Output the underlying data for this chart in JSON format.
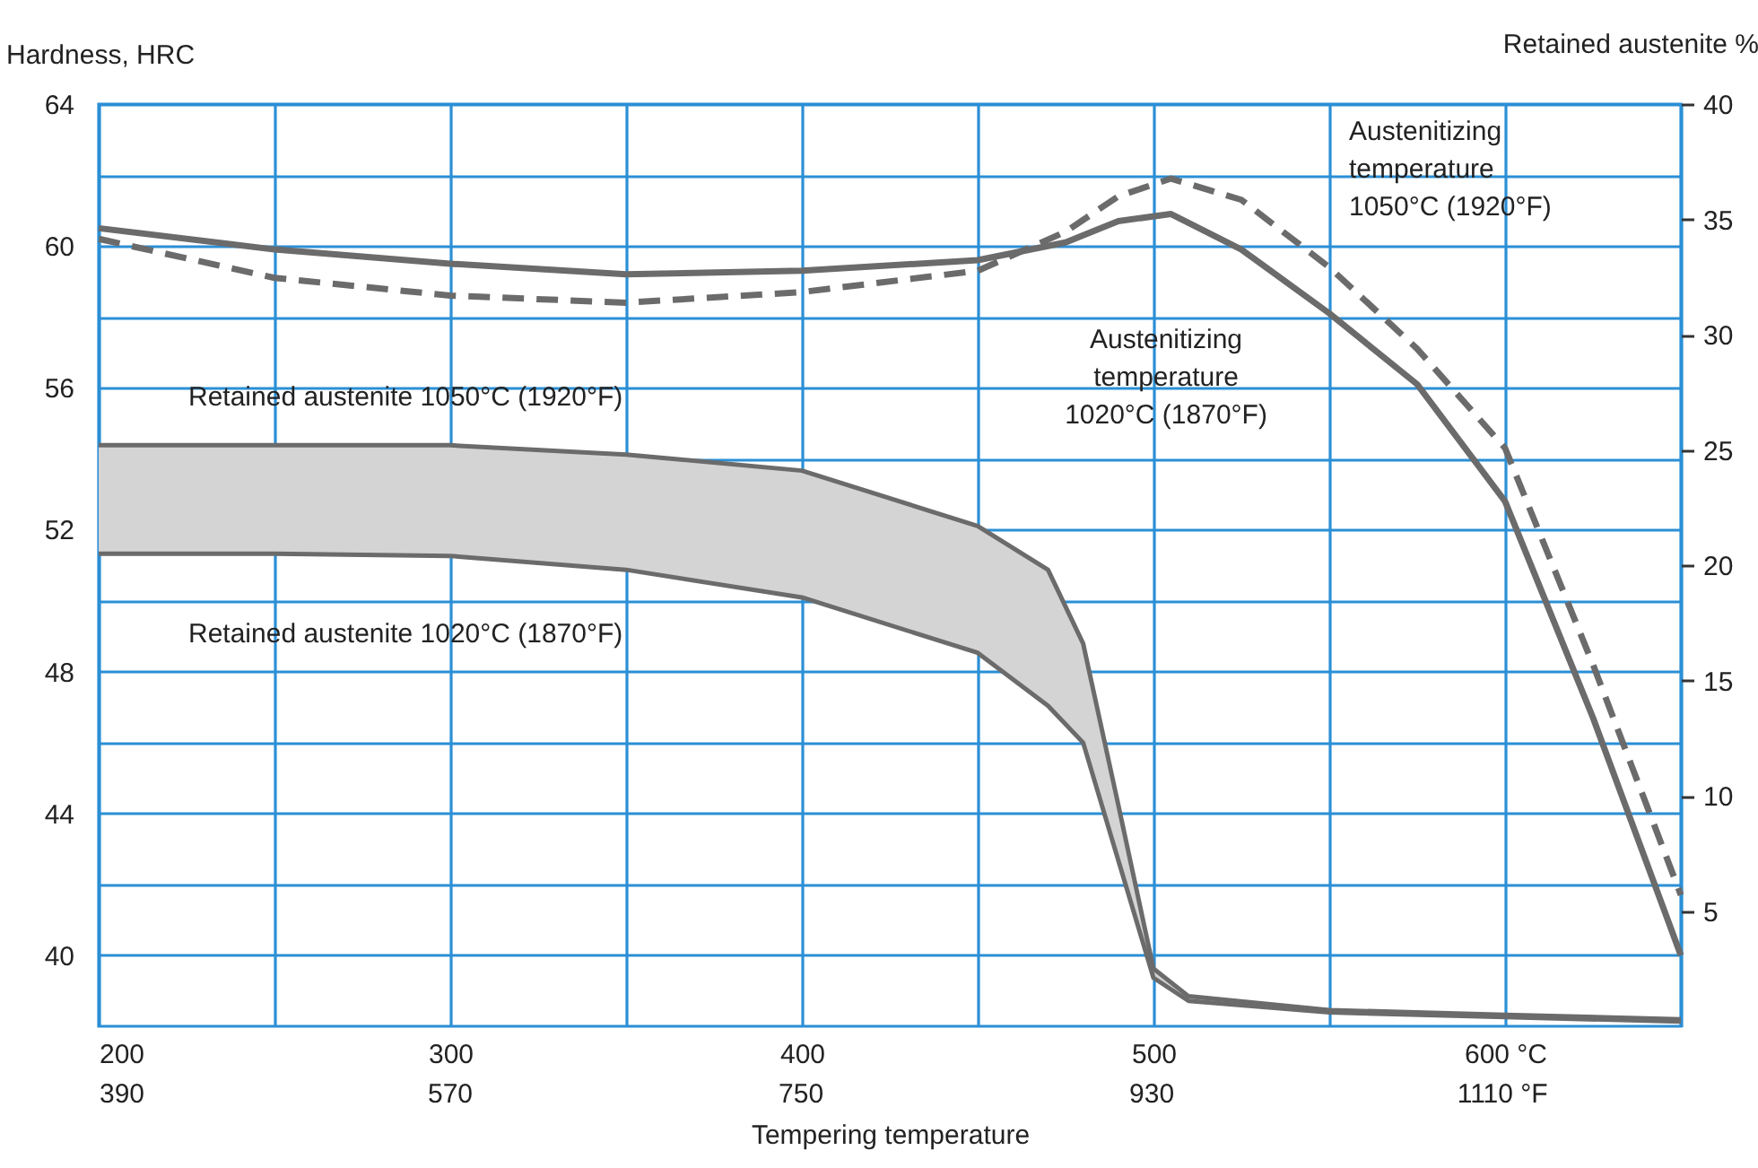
{
  "chart_data": {
    "type": "line",
    "xlabel": "Tempering temperature",
    "ylabel": "Hardness, HRC",
    "y2label": "Retained austenite %",
    "series": [
      {
        "name": "Austenitizing temperature 1050°C (1920°F)",
        "color": "#6b6b6b",
        "line_style": "dashed",
        "x": [
          200,
          250,
          300,
          350,
          400,
          450,
          475,
          490,
          505,
          525,
          550,
          575,
          600,
          625,
          650
        ],
        "values": [
          60.2,
          59.1,
          58.6,
          58.4,
          58.7,
          59.3,
          60.4,
          61.4,
          61.9,
          61.3,
          59.4,
          57.1,
          54.3,
          48.2,
          41.7
        ]
      },
      {
        "name": "Austenitizing temperature 1020°C (1870°F)",
        "color": "#6b6b6b",
        "line_style": "solid",
        "x": [
          200,
          250,
          300,
          350,
          400,
          450,
          475,
          490,
          505,
          525,
          550,
          575,
          600,
          625,
          650
        ],
        "values": [
          60.5,
          59.9,
          59.5,
          59.2,
          59.3,
          59.6,
          60.1,
          60.7,
          60.9,
          59.9,
          58.1,
          56.1,
          52.8,
          46.7,
          40.0
        ]
      },
      {
        "name": "Retained austenite 1050°C (1920°F)",
        "color": "#6b6b6b",
        "axis": "y2",
        "x": [
          200,
          250,
          300,
          350,
          400,
          450,
          470,
          480,
          490,
          500,
          510,
          550,
          600,
          650
        ],
        "values": [
          25.2,
          25.2,
          25.2,
          24.8,
          24.1,
          21.7,
          19.8,
          16.6,
          9.6,
          2.5,
          1.3,
          0.7,
          0.5,
          0.3
        ],
        "lower": [
          20.5,
          20.5,
          20.4,
          19.8,
          18.6,
          16.2,
          13.9,
          12.3,
          7.2,
          2.1,
          1.1,
          0.6,
          0.4,
          0.2
        ],
        "upper": [
          25.2,
          25.2,
          25.2,
          24.8,
          24.1,
          21.7,
          19.8,
          16.6,
          9.6,
          2.5,
          1.3,
          0.7,
          0.5,
          0.3
        ]
      },
      {
        "name": "Retained austenite 1020°C (1870°F)",
        "color": "#6b6b6b",
        "axis": "y2",
        "x": [
          200,
          250,
          300,
          350,
          400,
          450,
          470,
          480,
          490,
          500,
          510,
          550,
          600,
          650
        ],
        "values": [
          20.5,
          20.5,
          20.4,
          19.8,
          18.6,
          16.2,
          13.9,
          12.3,
          7.2,
          2.1,
          1.1,
          0.6,
          0.4,
          0.2
        ]
      }
    ],
    "xlim": [
      200,
      650
    ],
    "xticks": [
      200,
      {
        "value": 250,
        "label": null
      },
      300,
      {
        "value": 350,
        "label": null
      },
      400,
      {
        "value": 450,
        "label": null
      },
      500,
      {
        "value": 550,
        "label": null
      },
      {
        "value": 600,
        "label": "600 °C"
      },
      {
        "value": 650,
        "label": null
      }
    ],
    "x2lim": [
      390,
      1202
    ],
    "x2ticks": [
      390,
      570,
      750,
      930,
      {
        "value": 1110,
        "label": "1110 °F"
      }
    ],
    "ylim": [
      38,
      64
    ],
    "yticks": [
      40,
      {
        "value": 42,
        "label": null
      },
      44,
      {
        "value": 46,
        "label": null
      },
      48,
      {
        "value": 50,
        "label": null
      },
      52,
      {
        "value": 54,
        "label": null
      },
      56,
      {
        "value": 58,
        "label": null
      },
      60,
      {
        "value": 62,
        "label": null
      },
      64
    ],
    "y2lim": [
      0,
      40
    ],
    "y2ticks": [
      5,
      10,
      15,
      20,
      25,
      30,
      35,
      40
    ],
    "grid": true
  }
}
